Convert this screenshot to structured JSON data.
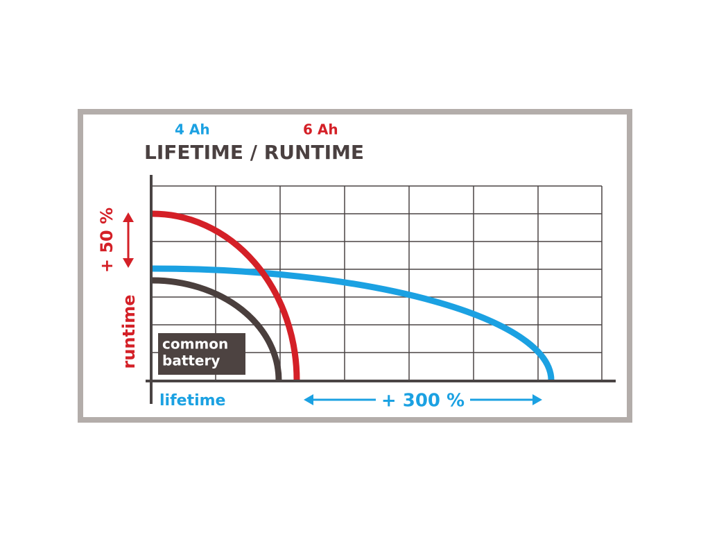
{
  "legend": {
    "items": [
      {
        "label": "4 Ah"
      },
      {
        "label": "6 Ah"
      }
    ]
  },
  "title": "LIFETIME / RUNTIME",
  "y_axis": {
    "label": "runtime",
    "annotation": "+ 50 %"
  },
  "x_axis": {
    "label": "lifetime",
    "annotation": "+ 300 %"
  },
  "badge": {
    "lines": [
      "common",
      "battery"
    ]
  }
}
